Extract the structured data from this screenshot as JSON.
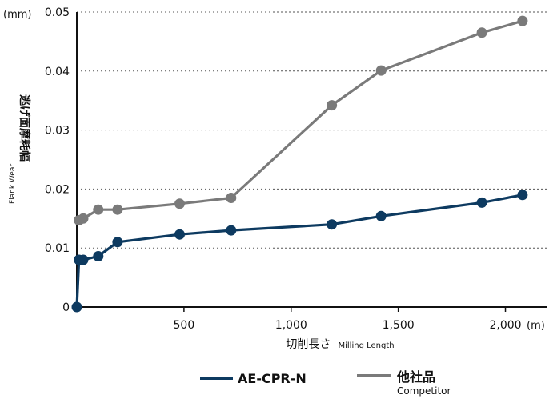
{
  "chart_data": {
    "type": "line",
    "y_unit": "(mm)",
    "x_unit": "(m)",
    "ylabel": "逃げ面摩耗幅",
    "ylabel_en": "Flank Wear",
    "xlabel": "切削長さ",
    "xlabel_en": "Milling Length",
    "xlim": [
      0,
      2200
    ],
    "ylim": [
      0,
      0.05
    ],
    "x_ticks": [
      500,
      1000,
      1500,
      2000
    ],
    "x_tick_labels": [
      "500",
      "1,000",
      "1,500",
      "2,000"
    ],
    "y_ticks": [
      0,
      0.01,
      0.02,
      0.03,
      0.04,
      0.05
    ],
    "y_tick_labels": [
      "0",
      "0.01",
      "0.02",
      "0.03",
      "0.04",
      "0.05"
    ],
    "grid": "horizontal dotted",
    "legend_position": "bottom",
    "series": [
      {
        "name": "AE-CPR-N",
        "color": "#0d3a60",
        "points": [
          [
            0,
            0
          ],
          [
            10,
            0.008
          ],
          [
            30,
            0.008
          ],
          [
            100,
            0.0086
          ],
          [
            190,
            0.011
          ],
          [
            480,
            0.0123
          ],
          [
            720,
            0.013
          ],
          [
            1190,
            0.014
          ],
          [
            1420,
            0.0154
          ],
          [
            1890,
            0.0177
          ],
          [
            2080,
            0.019
          ]
        ]
      },
      {
        "name": "他社品",
        "name_sub": "Competitor",
        "color": "#7a7a7a",
        "points": [
          [
            10,
            0.0147
          ],
          [
            30,
            0.015
          ],
          [
            100,
            0.0165
          ],
          [
            190,
            0.0165
          ],
          [
            480,
            0.0175
          ],
          [
            720,
            0.0185
          ],
          [
            1190,
            0.0342
          ],
          [
            1420,
            0.0401
          ],
          [
            1890,
            0.0465
          ],
          [
            2080,
            0.0485
          ]
        ]
      }
    ]
  }
}
